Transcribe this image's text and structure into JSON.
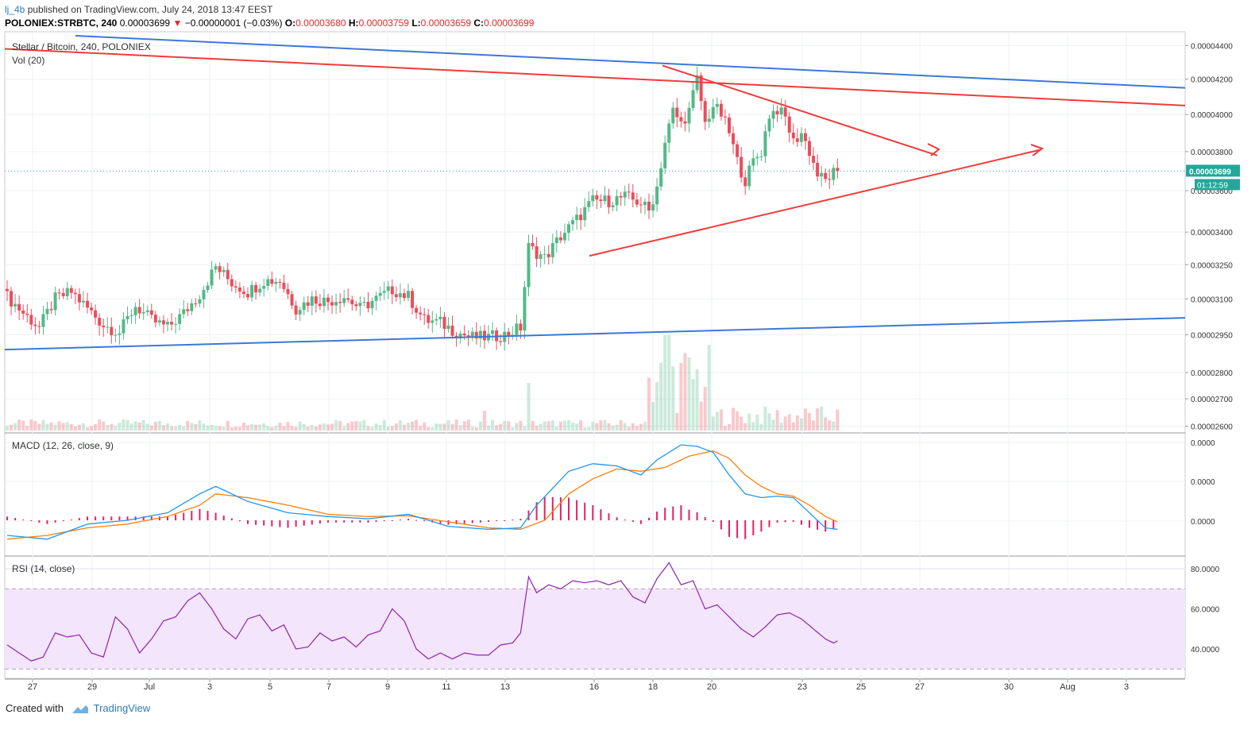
{
  "header": {
    "author": "lj_4b",
    "published_text": " published on TradingView.com, July 24, 2018 13:47 EEST",
    "symbol": "POLONIEX:STRBTC, 240",
    "last": "0.00003699",
    "change_arrow": "▼",
    "change": "−0.00000001 (−0.03%)",
    "o_label": "O:",
    "o": "0.00003680",
    "h_label": "H:",
    "h": "0.00003759",
    "l_label": "L:",
    "l": "0.00003659",
    "c_label": "C:",
    "c": "0.00003699"
  },
  "panes": {
    "main_title": "Stellar / Bitcoin, 240, POLONIEX",
    "vol_title": "Vol (20)",
    "macd_title": "MACD (12, 26, close, 9)",
    "rsi_title": "RSI (14, close)"
  },
  "price_badge": {
    "value": "0.00003699",
    "countdown": "01:12:59"
  },
  "footer": {
    "created_with": "Created with",
    "brand": "TradingView"
  },
  "colors": {
    "up": "#53b987",
    "down": "#eb4d5c",
    "blue_line": "#3c78d8",
    "red_line": "#f23a3a",
    "macd": "#2196f3",
    "signal": "#ff7f0e",
    "hist": "#e91e63",
    "rsi": "#8e24aa",
    "rsi_band": "#f3e5fb",
    "last_price": "#26a69a"
  },
  "chart_data": [
    {
      "type": "candlestick",
      "title": "Stellar / Bitcoin, 240, POLONIEX",
      "x_ticks": [
        "27",
        "29",
        "Jul",
        "3",
        "5",
        "7",
        "9",
        "11",
        "13",
        "16",
        "18",
        "20",
        "23",
        "25",
        "27",
        "30",
        "Aug",
        "3"
      ],
      "y_ticks": [
        "0.00004400",
        "0.00004200",
        "0.00004000",
        "0.00003800",
        "0.00003600",
        "0.00003400",
        "0.00003250",
        "0.00003100",
        "0.00002950",
        "0.00002800",
        "0.00002700",
        "0.00002600"
      ],
      "y_scale": "log",
      "y_range": [
        2.59e-05,
        4.46e-05
      ],
      "last_price": 3.699e-05,
      "close_keypoints": [
        [
          0,
          3.11e-05
        ],
        [
          4,
          3.04e-05
        ],
        [
          8,
          2.98e-05
        ],
        [
          12,
          3.1e-05
        ],
        [
          16,
          3.13e-05
        ],
        [
          20,
          3.06e-05
        ],
        [
          24,
          2.99e-05
        ],
        [
          28,
          2.96e-05
        ],
        [
          32,
          3.07e-05
        ],
        [
          36,
          3.01e-05
        ],
        [
          40,
          2.98e-05
        ],
        [
          44,
          3.04e-05
        ],
        [
          48,
          3.12e-05
        ],
        [
          52,
          3.24e-05
        ],
        [
          56,
          3.17e-05
        ],
        [
          60,
          3.13e-05
        ],
        [
          64,
          3.18e-05
        ],
        [
          68,
          3.18e-05
        ],
        [
          72,
          3.06e-05
        ],
        [
          76,
          3.1e-05
        ],
        [
          80,
          3.09e-05
        ],
        [
          84,
          3.11e-05
        ],
        [
          88,
          3.06e-05
        ],
        [
          92,
          3.1e-05
        ],
        [
          96,
          3.14e-05
        ],
        [
          100,
          3.11e-05
        ],
        [
          104,
          3.01e-05
        ],
        [
          108,
          3e-05
        ],
        [
          112,
          2.96e-05
        ],
        [
          116,
          2.94e-05
        ],
        [
          120,
          2.94e-05
        ],
        [
          124,
          2.95e-05
        ],
        [
          128,
          2.98e-05
        ],
        [
          130,
          3.33e-05
        ],
        [
          134,
          3.28e-05
        ],
        [
          138,
          3.38e-05
        ],
        [
          142,
          3.46e-05
        ],
        [
          146,
          3.55e-05
        ],
        [
          150,
          3.55e-05
        ],
        [
          154,
          3.57e-05
        ],
        [
          158,
          3.54e-05
        ],
        [
          160,
          3.5e-05
        ],
        [
          162,
          3.62e-05
        ],
        [
          164,
          3.85e-05
        ],
        [
          166,
          4.02e-05
        ],
        [
          168,
          3.95e-05
        ],
        [
          170,
          4.02e-05
        ],
        [
          172,
          4.2e-05
        ],
        [
          174,
          3.95e-05
        ],
        [
          176,
          4.05e-05
        ],
        [
          178,
          4e-05
        ],
        [
          180,
          3.9e-05
        ],
        [
          182,
          3.75e-05
        ],
        [
          184,
          3.65e-05
        ],
        [
          186,
          3.75e-05
        ],
        [
          188,
          3.8e-05
        ],
        [
          190,
          4e-05
        ],
        [
          192,
          4.03e-05
        ],
        [
          194,
          3.98e-05
        ],
        [
          196,
          3.85e-05
        ],
        [
          198,
          3.9e-05
        ],
        [
          200,
          3.8e-05
        ],
        [
          202,
          3.68e-05
        ],
        [
          204,
          3.65e-05
        ],
        [
          206,
          3.69e-05
        ],
        [
          207,
          3.7e-05
        ]
      ],
      "series": [
        {
          "name": "Vol",
          "type": "bar"
        }
      ]
    },
    {
      "type": "line",
      "title": "MACD (12, 26, close, 9)",
      "y_ticks": [
        "0.0000",
        "0.0000",
        "0.0000"
      ],
      "series": [
        {
          "name": "MACD",
          "values": [
            [
              0,
              -0.2
            ],
            [
              10,
              -0.25
            ],
            [
              20,
              -0.05
            ],
            [
              30,
              0.0
            ],
            [
              40,
              0.1
            ],
            [
              48,
              0.35
            ],
            [
              52,
              0.45
            ],
            [
              60,
              0.25
            ],
            [
              70,
              0.1
            ],
            [
              80,
              0.05
            ],
            [
              90,
              0.02
            ],
            [
              100,
              0.08
            ],
            [
              110,
              -0.08
            ],
            [
              120,
              -0.12
            ],
            [
              128,
              -0.1
            ],
            [
              132,
              0.2
            ],
            [
              140,
              0.65
            ],
            [
              146,
              0.75
            ],
            [
              152,
              0.72
            ],
            [
              158,
              0.6
            ],
            [
              162,
              0.8
            ],
            [
              168,
              1.0
            ],
            [
              172,
              0.98
            ],
            [
              176,
              0.9
            ],
            [
              180,
              0.6
            ],
            [
              184,
              0.35
            ],
            [
              188,
              0.3
            ],
            [
              192,
              0.32
            ],
            [
              196,
              0.3
            ],
            [
              200,
              0.1
            ],
            [
              204,
              -0.1
            ],
            [
              207,
              -0.12
            ]
          ]
        },
        {
          "name": "Signal",
          "values": [
            [
              0,
              -0.25
            ],
            [
              10,
              -0.2
            ],
            [
              20,
              -0.1
            ],
            [
              30,
              -0.05
            ],
            [
              40,
              0.05
            ],
            [
              48,
              0.2
            ],
            [
              52,
              0.35
            ],
            [
              60,
              0.3
            ],
            [
              70,
              0.2
            ],
            [
              80,
              0.08
            ],
            [
              90,
              0.05
            ],
            [
              100,
              0.06
            ],
            [
              110,
              -0.02
            ],
            [
              120,
              -0.1
            ],
            [
              128,
              -0.12
            ],
            [
              134,
              0.0
            ],
            [
              140,
              0.35
            ],
            [
              146,
              0.55
            ],
            [
              152,
              0.68
            ],
            [
              158,
              0.65
            ],
            [
              164,
              0.7
            ],
            [
              170,
              0.85
            ],
            [
              176,
              0.92
            ],
            [
              180,
              0.82
            ],
            [
              184,
              0.6
            ],
            [
              188,
              0.45
            ],
            [
              192,
              0.35
            ],
            [
              196,
              0.32
            ],
            [
              200,
              0.2
            ],
            [
              204,
              0.05
            ],
            [
              207,
              -0.02
            ]
          ]
        }
      ]
    },
    {
      "type": "line",
      "title": "RSI (14, close)",
      "y_ticks": [
        "80.0000",
        "60.0000",
        "40.0000"
      ],
      "ylim": [
        25,
        88
      ],
      "band": [
        30,
        70
      ],
      "series": [
        {
          "name": "RSI",
          "values": [
            [
              0,
              42
            ],
            [
              3,
              38
            ],
            [
              6,
              34
            ],
            [
              9,
              36
            ],
            [
              12,
              48
            ],
            [
              15,
              46
            ],
            [
              18,
              47
            ],
            [
              21,
              38
            ],
            [
              24,
              36
            ],
            [
              27,
              56
            ],
            [
              30,
              50
            ],
            [
              33,
              38
            ],
            [
              36,
              45
            ],
            [
              39,
              54
            ],
            [
              42,
              56
            ],
            [
              45,
              64
            ],
            [
              48,
              68
            ],
            [
              51,
              60
            ],
            [
              54,
              50
            ],
            [
              57,
              45
            ],
            [
              60,
              55
            ],
            [
              63,
              57
            ],
            [
              66,
              49
            ],
            [
              69,
              52
            ],
            [
              72,
              40
            ],
            [
              75,
              41
            ],
            [
              78,
              48
            ],
            [
              81,
              44
            ],
            [
              84,
              46
            ],
            [
              87,
              41
            ],
            [
              90,
              47
            ],
            [
              93,
              49
            ],
            [
              96,
              60
            ],
            [
              99,
              54
            ],
            [
              102,
              40
            ],
            [
              105,
              35
            ],
            [
              108,
              38
            ],
            [
              111,
              35
            ],
            [
              114,
              38
            ],
            [
              117,
              37
            ],
            [
              120,
              37
            ],
            [
              123,
              42
            ],
            [
              126,
              43
            ],
            [
              128,
              48
            ],
            [
              130,
              76
            ],
            [
              132,
              68
            ],
            [
              135,
              72
            ],
            [
              138,
              70
            ],
            [
              141,
              74
            ],
            [
              144,
              73
            ],
            [
              147,
              74
            ],
            [
              150,
              72
            ],
            [
              153,
              74
            ],
            [
              156,
              66
            ],
            [
              159,
              63
            ],
            [
              162,
              75
            ],
            [
              165,
              83
            ],
            [
              168,
              72
            ],
            [
              171,
              74
            ],
            [
              174,
              60
            ],
            [
              177,
              62
            ],
            [
              180,
              56
            ],
            [
              183,
              50
            ],
            [
              186,
              46
            ],
            [
              189,
              51
            ],
            [
              192,
              57
            ],
            [
              195,
              58
            ],
            [
              198,
              55
            ],
            [
              201,
              50
            ],
            [
              204,
              45
            ],
            [
              206,
              43
            ],
            [
              207,
              44
            ]
          ]
        }
      ]
    }
  ]
}
